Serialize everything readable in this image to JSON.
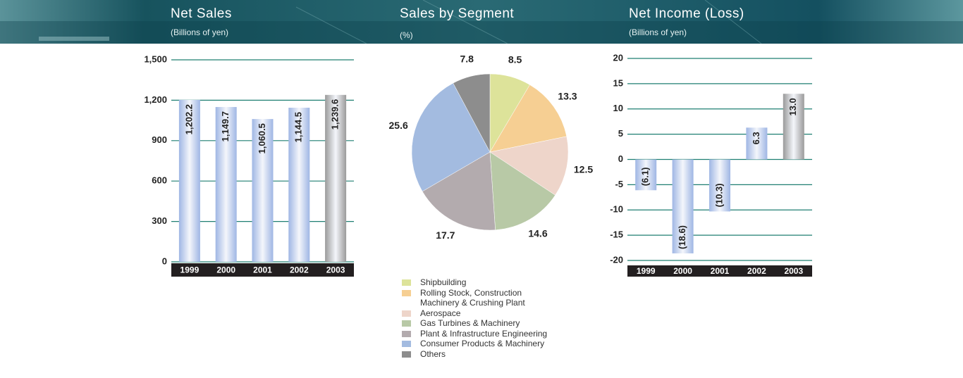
{
  "chart_data": [
    {
      "type": "bar",
      "title": "Net Sales",
      "subtitle": "(Billions of yen)",
      "categories": [
        "1999",
        "2000",
        "2001",
        "2002",
        "2003"
      ],
      "values": [
        1202.2,
        1149.7,
        1060.5,
        1144.5,
        1239.6
      ],
      "value_labels": [
        "1,202.2",
        "1,149.7",
        "1,060.5",
        "1,144.5",
        "1,239.6"
      ],
      "colors": [
        "#9fb6e4",
        "#9fb6e4",
        "#9fb6e4",
        "#9fb6e4",
        "#9a9a9a"
      ],
      "ylim": [
        0,
        1500
      ],
      "yticks": [
        0,
        300,
        600,
        900,
        {
          "value": 1200,
          "label": "1,200"
        },
        {
          "value": 1500,
          "label": "1,500"
        }
      ],
      "grid": true
    },
    {
      "type": "pie",
      "title": "Sales by Segment",
      "subtitle": "(%)",
      "categories": [
        "Shipbuilding",
        "Rolling Stock, Construction\nMachinery & Crushing Plant",
        "Aerospace",
        "Gas Turbines & Machinery",
        "Plant & Infrastructure Engineering",
        "Consumer Products & Machinery",
        "Others"
      ],
      "values": [
        8.5,
        13.3,
        12.5,
        14.6,
        17.7,
        25.6,
        7.8
      ],
      "colors": [
        "#dde39a",
        "#f6cf93",
        "#eed5ca",
        "#b8c9a6",
        "#b3abae",
        "#a3bbe0",
        "#8d8d8d"
      ]
    },
    {
      "type": "bar",
      "title": "Net Income (Loss)",
      "subtitle": "(Billions of yen)",
      "categories": [
        "1999",
        "2000",
        "2001",
        "2002",
        "2003"
      ],
      "values": [
        -6.1,
        -18.6,
        -10.3,
        6.3,
        13.0
      ],
      "value_labels": [
        "(6.1)",
        "(18.6)",
        "(10.3)",
        "6.3",
        "13.0"
      ],
      "colors": [
        "#9fb6e4",
        "#9fb6e4",
        "#9fb6e4",
        "#9fb6e4",
        "#9a9a9a"
      ],
      "ylim": [
        -20,
        20
      ],
      "yticks": [
        -20,
        -15,
        -10,
        -5,
        0,
        5,
        10,
        15,
        20
      ],
      "grid": true
    }
  ]
}
